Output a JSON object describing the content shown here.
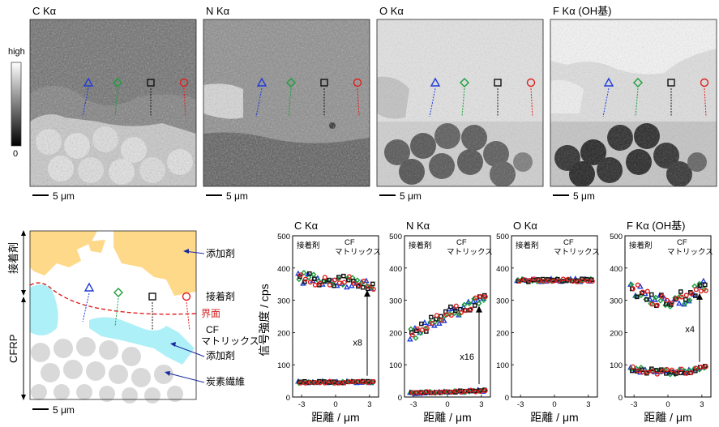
{
  "maps": [
    {
      "label": "C Kα",
      "scalebar": "5 μm"
    },
    {
      "label": "N Kα",
      "scalebar": "5 μm"
    },
    {
      "label": "O Kα",
      "scalebar": "5 μm"
    },
    {
      "label": "F Kα (OH基)",
      "scalebar": "5 μm"
    }
  ],
  "colorbar": {
    "high": "high",
    "low": "0"
  },
  "schematic": {
    "adhesive_side": "接着剤",
    "cfrp_side": "CFRP",
    "additive_top": "添加剤",
    "adhesive_label": "接着剤",
    "interface": "界面",
    "cf_matrix_line1": "CF",
    "cf_matrix_line2": "マトリックス",
    "additive_bottom": "添加剤",
    "carbon_fiber": "炭素繊維",
    "scalebar": "5 μm"
  },
  "plot_labels": {
    "ylabel": "信号強度 / cps",
    "xlabel": "距離 / μm",
    "region_left": "接着剤",
    "region_right_1": "CF",
    "region_right_2": "マトリックス"
  },
  "colors": {
    "triangle": "#1f3bd8",
    "diamond": "#1a9e3a",
    "square": "#111111",
    "circle": "#e01e1e",
    "adhesive_fill": "#ffd98a",
    "additive_fill": "#aef0f7",
    "fiber_fill": "#d9d9d9"
  },
  "chart_data": [
    {
      "type": "scatter",
      "title": "C Kα",
      "multiplier": "x8",
      "xlim": [
        -3.8,
        3.8
      ],
      "ylim": [
        0,
        500
      ],
      "x_ticks": [
        -3,
        0,
        3
      ],
      "y_ticks": [
        0,
        100,
        200,
        300,
        400,
        500
      ],
      "upper_level": 360,
      "lower_level": 46,
      "series": [
        {
          "marker": "triangle"
        },
        {
          "marker": "diamond"
        },
        {
          "marker": "square"
        },
        {
          "marker": "circle"
        }
      ]
    },
    {
      "type": "scatter",
      "title": "N Kα",
      "multiplier": "x16",
      "xlim": [
        -3.8,
        3.8
      ],
      "ylim": [
        0,
        500
      ],
      "x_ticks": [
        -3,
        0,
        3
      ],
      "y_ticks": [
        0,
        100,
        200,
        300,
        400,
        500
      ],
      "upper_level": "200-320",
      "lower_level": 18,
      "series": [
        {
          "marker": "triangle"
        },
        {
          "marker": "diamond"
        },
        {
          "marker": "square"
        },
        {
          "marker": "circle"
        }
      ]
    },
    {
      "type": "scatter",
      "title": "O Kα",
      "multiplier": "",
      "xlim": [
        -3.8,
        3.8
      ],
      "ylim": [
        0,
        500
      ],
      "x_ticks": [
        -3,
        0,
        3
      ],
      "y_ticks": [
        0,
        100,
        200,
        300,
        400,
        500
      ],
      "upper_level": 362,
      "lower_level": null,
      "series": [
        {
          "marker": "triangle"
        },
        {
          "marker": "diamond"
        },
        {
          "marker": "square"
        },
        {
          "marker": "circle"
        }
      ]
    },
    {
      "type": "scatter",
      "title": "F Kα (OH基)",
      "multiplier": "x4",
      "xlim": [
        -3.8,
        3.8
      ],
      "ylim": [
        0,
        500
      ],
      "x_ticks": [
        -3,
        0,
        3
      ],
      "y_ticks": [
        0,
        100,
        200,
        300,
        400,
        500
      ],
      "upper_level": "280-360",
      "lower_level": 80,
      "series": [
        {
          "marker": "triangle"
        },
        {
          "marker": "diamond"
        },
        {
          "marker": "square"
        },
        {
          "marker": "circle"
        }
      ]
    }
  ]
}
